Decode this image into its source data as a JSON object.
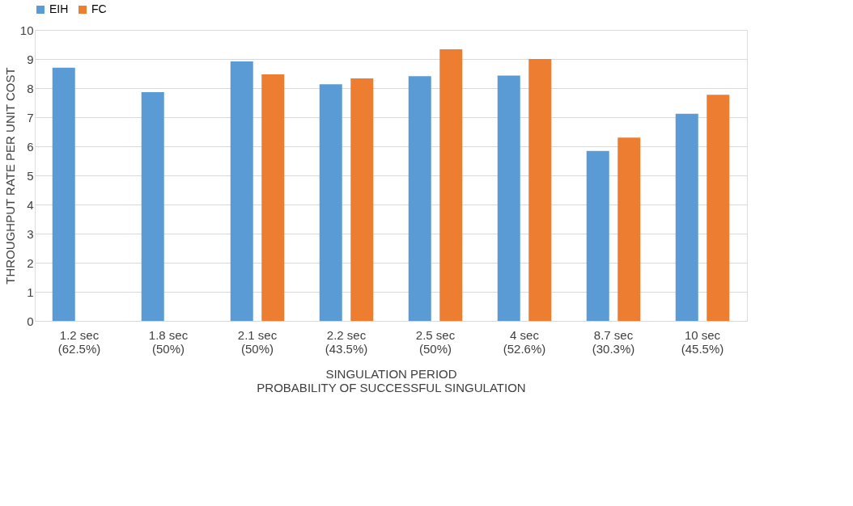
{
  "chart_data": {
    "type": "bar",
    "xlabel": "SINGULATION PERIOD\nPROBABILITY OF SUCCESSFUL SINGULATION",
    "ylabel": "THROUGHPUT RATE PER UNIT COST",
    "categories": [
      "1.2 sec\n(62.5%)",
      "1.8 sec\n(50%)",
      "2.1 sec\n(50%)",
      "2.2 sec\n(43.5%)",
      "2.5 sec\n(50%)",
      "4 sec\n(52.6%)",
      "8.7 sec\n(30.3%)",
      "10 sec\n(45.5%)"
    ],
    "series": [
      {
        "name": "EIH",
        "color": "#5b9bd5",
        "values": [
          8.7,
          7.86,
          8.92,
          8.13,
          8.41,
          8.43,
          5.84,
          7.12
        ]
      },
      {
        "name": "FC",
        "color": "#ed7d31",
        "values": [
          null,
          null,
          8.47,
          8.33,
          9.33,
          9.0,
          6.3,
          7.77
        ]
      }
    ],
    "ylim": [
      0,
      10
    ],
    "yticks": [
      0,
      1,
      2,
      3,
      4,
      5,
      6,
      7,
      8,
      9,
      10
    ],
    "grid": "y",
    "legend": "top"
  }
}
